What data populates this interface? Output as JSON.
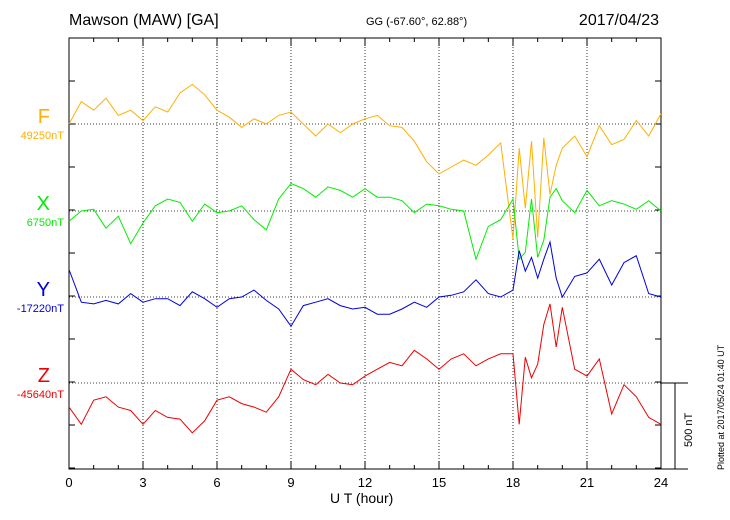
{
  "header": {
    "station": "Mawson (MAW)  [GA]",
    "coords": "GG (-67.60°,  62.88°)",
    "date": "2017/04/23"
  },
  "plot_stamp": "Plotted at 2017/05/24 01:40 UT",
  "colors": {
    "F": "#ffb000",
    "X": "#00ee00",
    "Y": "#0000dd",
    "Z": "#ee0000"
  },
  "chart_data": {
    "type": "line",
    "title": "Mawson (MAW)  [GA]",
    "xlabel": "U T (hour)",
    "x_ticks": [
      "0",
      "3",
      "6",
      "9",
      "12",
      "15",
      "18",
      "21",
      "24"
    ],
    "xlim": [
      0,
      24
    ],
    "scale_bar": "500 nT",
    "scale_bar_nT": 500,
    "grid": true,
    "series": [
      {
        "name": "F",
        "baseline_label": "49250nT",
        "baseline_nT": 49250,
        "x": [
          0,
          0.5,
          1,
          1.5,
          2,
          2.5,
          3,
          3.5,
          4,
          4.5,
          5,
          5.5,
          6,
          6.5,
          7,
          7.5,
          8,
          8.5,
          9,
          9.5,
          10,
          10.5,
          11,
          11.5,
          12,
          12.5,
          13,
          13.5,
          14,
          14.5,
          15,
          15.5,
          16,
          16.5,
          17,
          17.5,
          18,
          18.25,
          18.5,
          18.75,
          19,
          19.25,
          19.5,
          19.75,
          20,
          20.5,
          21,
          21.5,
          22,
          22.5,
          23,
          23.5,
          24
        ],
        "values": [
          49250,
          49380,
          49330,
          49400,
          49300,
          49330,
          49270,
          49350,
          49320,
          49430,
          49480,
          49420,
          49330,
          49290,
          49230,
          49280,
          49250,
          49300,
          49320,
          49250,
          49180,
          49250,
          49200,
          49250,
          49280,
          49300,
          49240,
          49230,
          49150,
          49030,
          48960,
          49000,
          49040,
          49010,
          49070,
          49140,
          48580,
          49110,
          48760,
          49150,
          48590,
          49170,
          48840,
          49010,
          49110,
          49180,
          49060,
          49240,
          49130,
          49160,
          49270,
          49180,
          49310
        ]
      },
      {
        "name": "X",
        "baseline_label": "6750nT",
        "baseline_nT": 6750,
        "x": [
          0,
          0.5,
          1,
          1.5,
          2,
          2.5,
          3,
          3.5,
          4,
          4.5,
          5,
          5.5,
          6,
          6.5,
          7,
          7.5,
          8,
          8.5,
          9,
          9.5,
          10,
          10.5,
          11,
          11.5,
          12,
          12.5,
          13,
          13.5,
          14,
          14.5,
          15,
          15.5,
          16,
          16.5,
          17,
          17.5,
          18,
          18.25,
          18.5,
          18.75,
          19,
          19.25,
          19.5,
          19.75,
          20,
          20.5,
          21,
          21.5,
          22,
          22.5,
          23,
          23.5,
          24
        ],
        "values": [
          6690,
          6750,
          6760,
          6650,
          6720,
          6560,
          6680,
          6780,
          6820,
          6800,
          6690,
          6790,
          6740,
          6750,
          6780,
          6700,
          6640,
          6820,
          6910,
          6880,
          6830,
          6890,
          6870,
          6830,
          6880,
          6830,
          6830,
          6810,
          6740,
          6790,
          6780,
          6760,
          6750,
          6470,
          6660,
          6700,
          6820,
          6470,
          6510,
          6820,
          6480,
          6580,
          6830,
          6880,
          6810,
          6740,
          6870,
          6780,
          6810,
          6790,
          6760,
          6810,
          6750
        ]
      },
      {
        "name": "Y",
        "baseline_label": "-17220nT",
        "baseline_nT": -17220,
        "x": [
          0,
          0.5,
          1,
          1.5,
          2,
          2.5,
          3,
          3.5,
          4,
          4.5,
          5,
          5.5,
          6,
          6.5,
          7,
          7.5,
          8,
          8.5,
          9,
          9.5,
          10,
          10.5,
          11,
          11.5,
          12,
          12.5,
          13,
          13.5,
          14,
          14.5,
          15,
          15.5,
          16,
          16.5,
          17,
          17.5,
          18,
          18.25,
          18.5,
          18.75,
          19,
          19.25,
          19.5,
          19.75,
          20,
          20.5,
          21,
          21.5,
          22,
          22.5,
          23,
          23.5,
          24
        ],
        "values": [
          -17060,
          -17250,
          -17260,
          -17240,
          -17260,
          -17200,
          -17250,
          -17230,
          -17230,
          -17270,
          -17190,
          -17230,
          -17280,
          -17230,
          -17220,
          -17180,
          -17240,
          -17290,
          -17390,
          -17270,
          -17250,
          -17230,
          -17270,
          -17290,
          -17280,
          -17320,
          -17320,
          -17290,
          -17250,
          -17280,
          -17220,
          -17210,
          -17190,
          -17120,
          -17200,
          -17220,
          -17180,
          -16950,
          -17070,
          -16990,
          -17110,
          -17000,
          -16900,
          -17110,
          -17220,
          -17100,
          -17080,
          -17000,
          -17150,
          -17020,
          -16980,
          -17200,
          -17220
        ]
      },
      {
        "name": "Z",
        "baseline_label": "-45640nT",
        "baseline_nT": -45640,
        "x": [
          0,
          0.5,
          1,
          1.5,
          2,
          2.5,
          3,
          3.5,
          4,
          4.5,
          5,
          5.5,
          6,
          6.5,
          7,
          7.5,
          8,
          8.5,
          9,
          9.5,
          10,
          10.5,
          11,
          11.5,
          12,
          12.5,
          13,
          13.5,
          14,
          14.5,
          15,
          15.5,
          16,
          16.5,
          17,
          17.5,
          18,
          18.25,
          18.5,
          18.75,
          19,
          19.25,
          19.5,
          19.75,
          20,
          20.5,
          21,
          21.5,
          22,
          22.5,
          23,
          23.5,
          24
        ],
        "values": [
          -45780,
          -45880,
          -45740,
          -45720,
          -45780,
          -45800,
          -45880,
          -45800,
          -45840,
          -45850,
          -45930,
          -45860,
          -45740,
          -45720,
          -45760,
          -45780,
          -45810,
          -45720,
          -45560,
          -45620,
          -45650,
          -45590,
          -45640,
          -45650,
          -45600,
          -45560,
          -45520,
          -45540,
          -45450,
          -45500,
          -45560,
          -45500,
          -45470,
          -45540,
          -45500,
          -45470,
          -45470,
          -45880,
          -45490,
          -45610,
          -45530,
          -45300,
          -45180,
          -45430,
          -45200,
          -45560,
          -45600,
          -45500,
          -45820,
          -45650,
          -45720,
          -45840,
          -45880
        ]
      }
    ]
  }
}
